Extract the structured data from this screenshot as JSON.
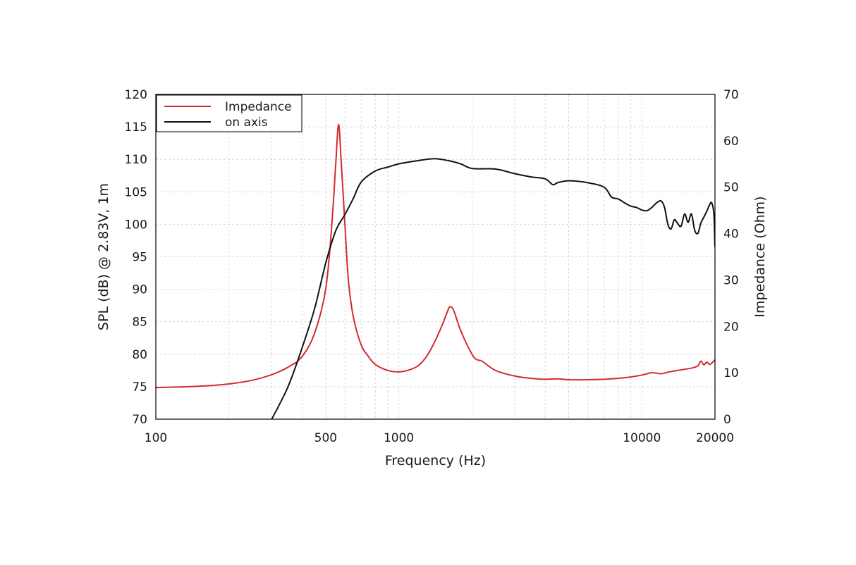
{
  "chart_data": {
    "type": "line",
    "xlabel": "Frequency (Hz)",
    "ylabel_left": "SPL (dB) @ 2.83V, 1m",
    "ylabel_right": "Impedance (Ohm)",
    "x_scale": "log",
    "xlim": [
      100,
      20000
    ],
    "ylim_left": [
      70,
      120
    ],
    "ylim_right": [
      0,
      70
    ],
    "x_ticks": [
      "100",
      "500",
      "1000",
      "10000",
      "20000"
    ],
    "y_ticks_left": [
      "70",
      "75",
      "80",
      "85",
      "90",
      "95",
      "100",
      "105",
      "110",
      "115",
      "120"
    ],
    "y_ticks_right": [
      "0",
      "10",
      "20",
      "30",
      "40",
      "50",
      "60",
      "70"
    ],
    "grid": true,
    "legend_position": "top-left",
    "series": [
      {
        "name": "Impedance",
        "axis": "right",
        "color": "#d42a2a",
        "points": [
          [
            100,
            6.8
          ],
          [
            150,
            7.1
          ],
          [
            200,
            7.6
          ],
          [
            250,
            8.4
          ],
          [
            300,
            9.6
          ],
          [
            350,
            11.2
          ],
          [
            400,
            13.5
          ],
          [
            450,
            18.5
          ],
          [
            500,
            28
          ],
          [
            530,
            42
          ],
          [
            550,
            55
          ],
          [
            565,
            63.5
          ],
          [
            580,
            55
          ],
          [
            600,
            42
          ],
          [
            620,
            30
          ],
          [
            650,
            22
          ],
          [
            700,
            16
          ],
          [
            750,
            13.5
          ],
          [
            800,
            11.8
          ],
          [
            900,
            10.5
          ],
          [
            1000,
            10.2
          ],
          [
            1100,
            10.6
          ],
          [
            1200,
            11.5
          ],
          [
            1300,
            13.5
          ],
          [
            1400,
            16.5
          ],
          [
            1500,
            20
          ],
          [
            1580,
            23
          ],
          [
            1620,
            24.2
          ],
          [
            1680,
            23.5
          ],
          [
            1800,
            19
          ],
          [
            2000,
            14
          ],
          [
            2100,
            12.8
          ],
          [
            2200,
            12.5
          ],
          [
            2500,
            10.5
          ],
          [
            3000,
            9.3
          ],
          [
            3500,
            8.8
          ],
          [
            4000,
            8.6
          ],
          [
            4500,
            8.7
          ],
          [
            5000,
            8.5
          ],
          [
            6000,
            8.5
          ],
          [
            7000,
            8.6
          ],
          [
            8000,
            8.8
          ],
          [
            9000,
            9.1
          ],
          [
            10000,
            9.5
          ],
          [
            11000,
            10
          ],
          [
            12000,
            9.8
          ],
          [
            13000,
            10.2
          ],
          [
            14000,
            10.5
          ],
          [
            16000,
            11
          ],
          [
            17000,
            11.5
          ],
          [
            17500,
            12.5
          ],
          [
            18000,
            11.7
          ],
          [
            18500,
            12.3
          ],
          [
            19000,
            11.8
          ],
          [
            19500,
            12.2
          ],
          [
            20000,
            12.8
          ]
        ]
      },
      {
        "name": "on axis",
        "axis": "left",
        "color": "#111111",
        "points": [
          [
            300,
            70
          ],
          [
            350,
            75
          ],
          [
            400,
            81
          ],
          [
            450,
            87
          ],
          [
            500,
            94
          ],
          [
            550,
            99
          ],
          [
            600,
            101.5
          ],
          [
            650,
            104
          ],
          [
            700,
            106.5
          ],
          [
            800,
            108.2
          ],
          [
            900,
            108.8
          ],
          [
            1000,
            109.3
          ],
          [
            1200,
            109.8
          ],
          [
            1400,
            110.1
          ],
          [
            1600,
            109.8
          ],
          [
            1800,
            109.3
          ],
          [
            2000,
            108.6
          ],
          [
            2500,
            108.5
          ],
          [
            3000,
            107.8
          ],
          [
            3500,
            107.3
          ],
          [
            4000,
            107
          ],
          [
            4300,
            106.1
          ],
          [
            4500,
            106.4
          ],
          [
            5000,
            106.7
          ],
          [
            6000,
            106.4
          ],
          [
            7000,
            105.7
          ],
          [
            7500,
            104.2
          ],
          [
            8000,
            103.9
          ],
          [
            8500,
            103.3
          ],
          [
            9000,
            102.8
          ],
          [
            9500,
            102.6
          ],
          [
            10000,
            102.2
          ],
          [
            10500,
            102.1
          ],
          [
            11000,
            102.6
          ],
          [
            11500,
            103.3
          ],
          [
            12000,
            103.6
          ],
          [
            12400,
            102.6
          ],
          [
            12800,
            100
          ],
          [
            13200,
            99.3
          ],
          [
            13600,
            100.7
          ],
          [
            14000,
            100.2
          ],
          [
            14500,
            99.7
          ],
          [
            15000,
            101.6
          ],
          [
            15500,
            100.3
          ],
          [
            16000,
            101.6
          ],
          [
            16500,
            99.1
          ],
          [
            17000,
            98.6
          ],
          [
            17500,
            100.2
          ],
          [
            18000,
            101.1
          ],
          [
            18500,
            102
          ],
          [
            19000,
            103
          ],
          [
            19400,
            103.3
          ],
          [
            19800,
            101.5
          ],
          [
            20000,
            96.5
          ]
        ]
      }
    ]
  }
}
